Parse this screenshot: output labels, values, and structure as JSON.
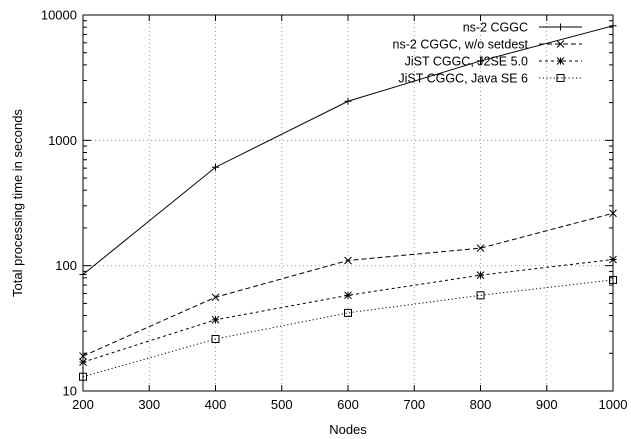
{
  "chart_data": {
    "type": "line",
    "title": "",
    "xlabel": "Nodes",
    "ylabel": "Total processing time in seconds",
    "xlim": [
      200,
      1000
    ],
    "ylim": [
      10,
      10000
    ],
    "yscale": "log",
    "grid": true,
    "legend_position": "top-right",
    "x_ticks": [
      "200",
      "300",
      "400",
      "500",
      "600",
      "700",
      "800",
      "900",
      "1000"
    ],
    "y_ticks": [
      "10",
      "100",
      "1000",
      "10000"
    ],
    "x": [
      200,
      400,
      600,
      800,
      1000
    ],
    "series": [
      {
        "name": "ns-2 CGGC",
        "values": [
          85,
          610,
          2050,
          4300,
          8200
        ],
        "marker": "plus",
        "dash": "solid"
      },
      {
        "name": "ns-2 CGGC, w/o setdest",
        "values": [
          19,
          56,
          110,
          138,
          262
        ],
        "marker": "cross",
        "dash": "dashed"
      },
      {
        "name": "JiST CGGC, J2SE 5.0",
        "values": [
          17,
          37,
          58,
          84,
          112
        ],
        "marker": "star",
        "dash": "short-dashed"
      },
      {
        "name": "JiST CGGC, Java SE 6",
        "values": [
          13,
          26,
          42,
          58,
          77
        ],
        "marker": "square",
        "dash": "dotted"
      }
    ]
  }
}
